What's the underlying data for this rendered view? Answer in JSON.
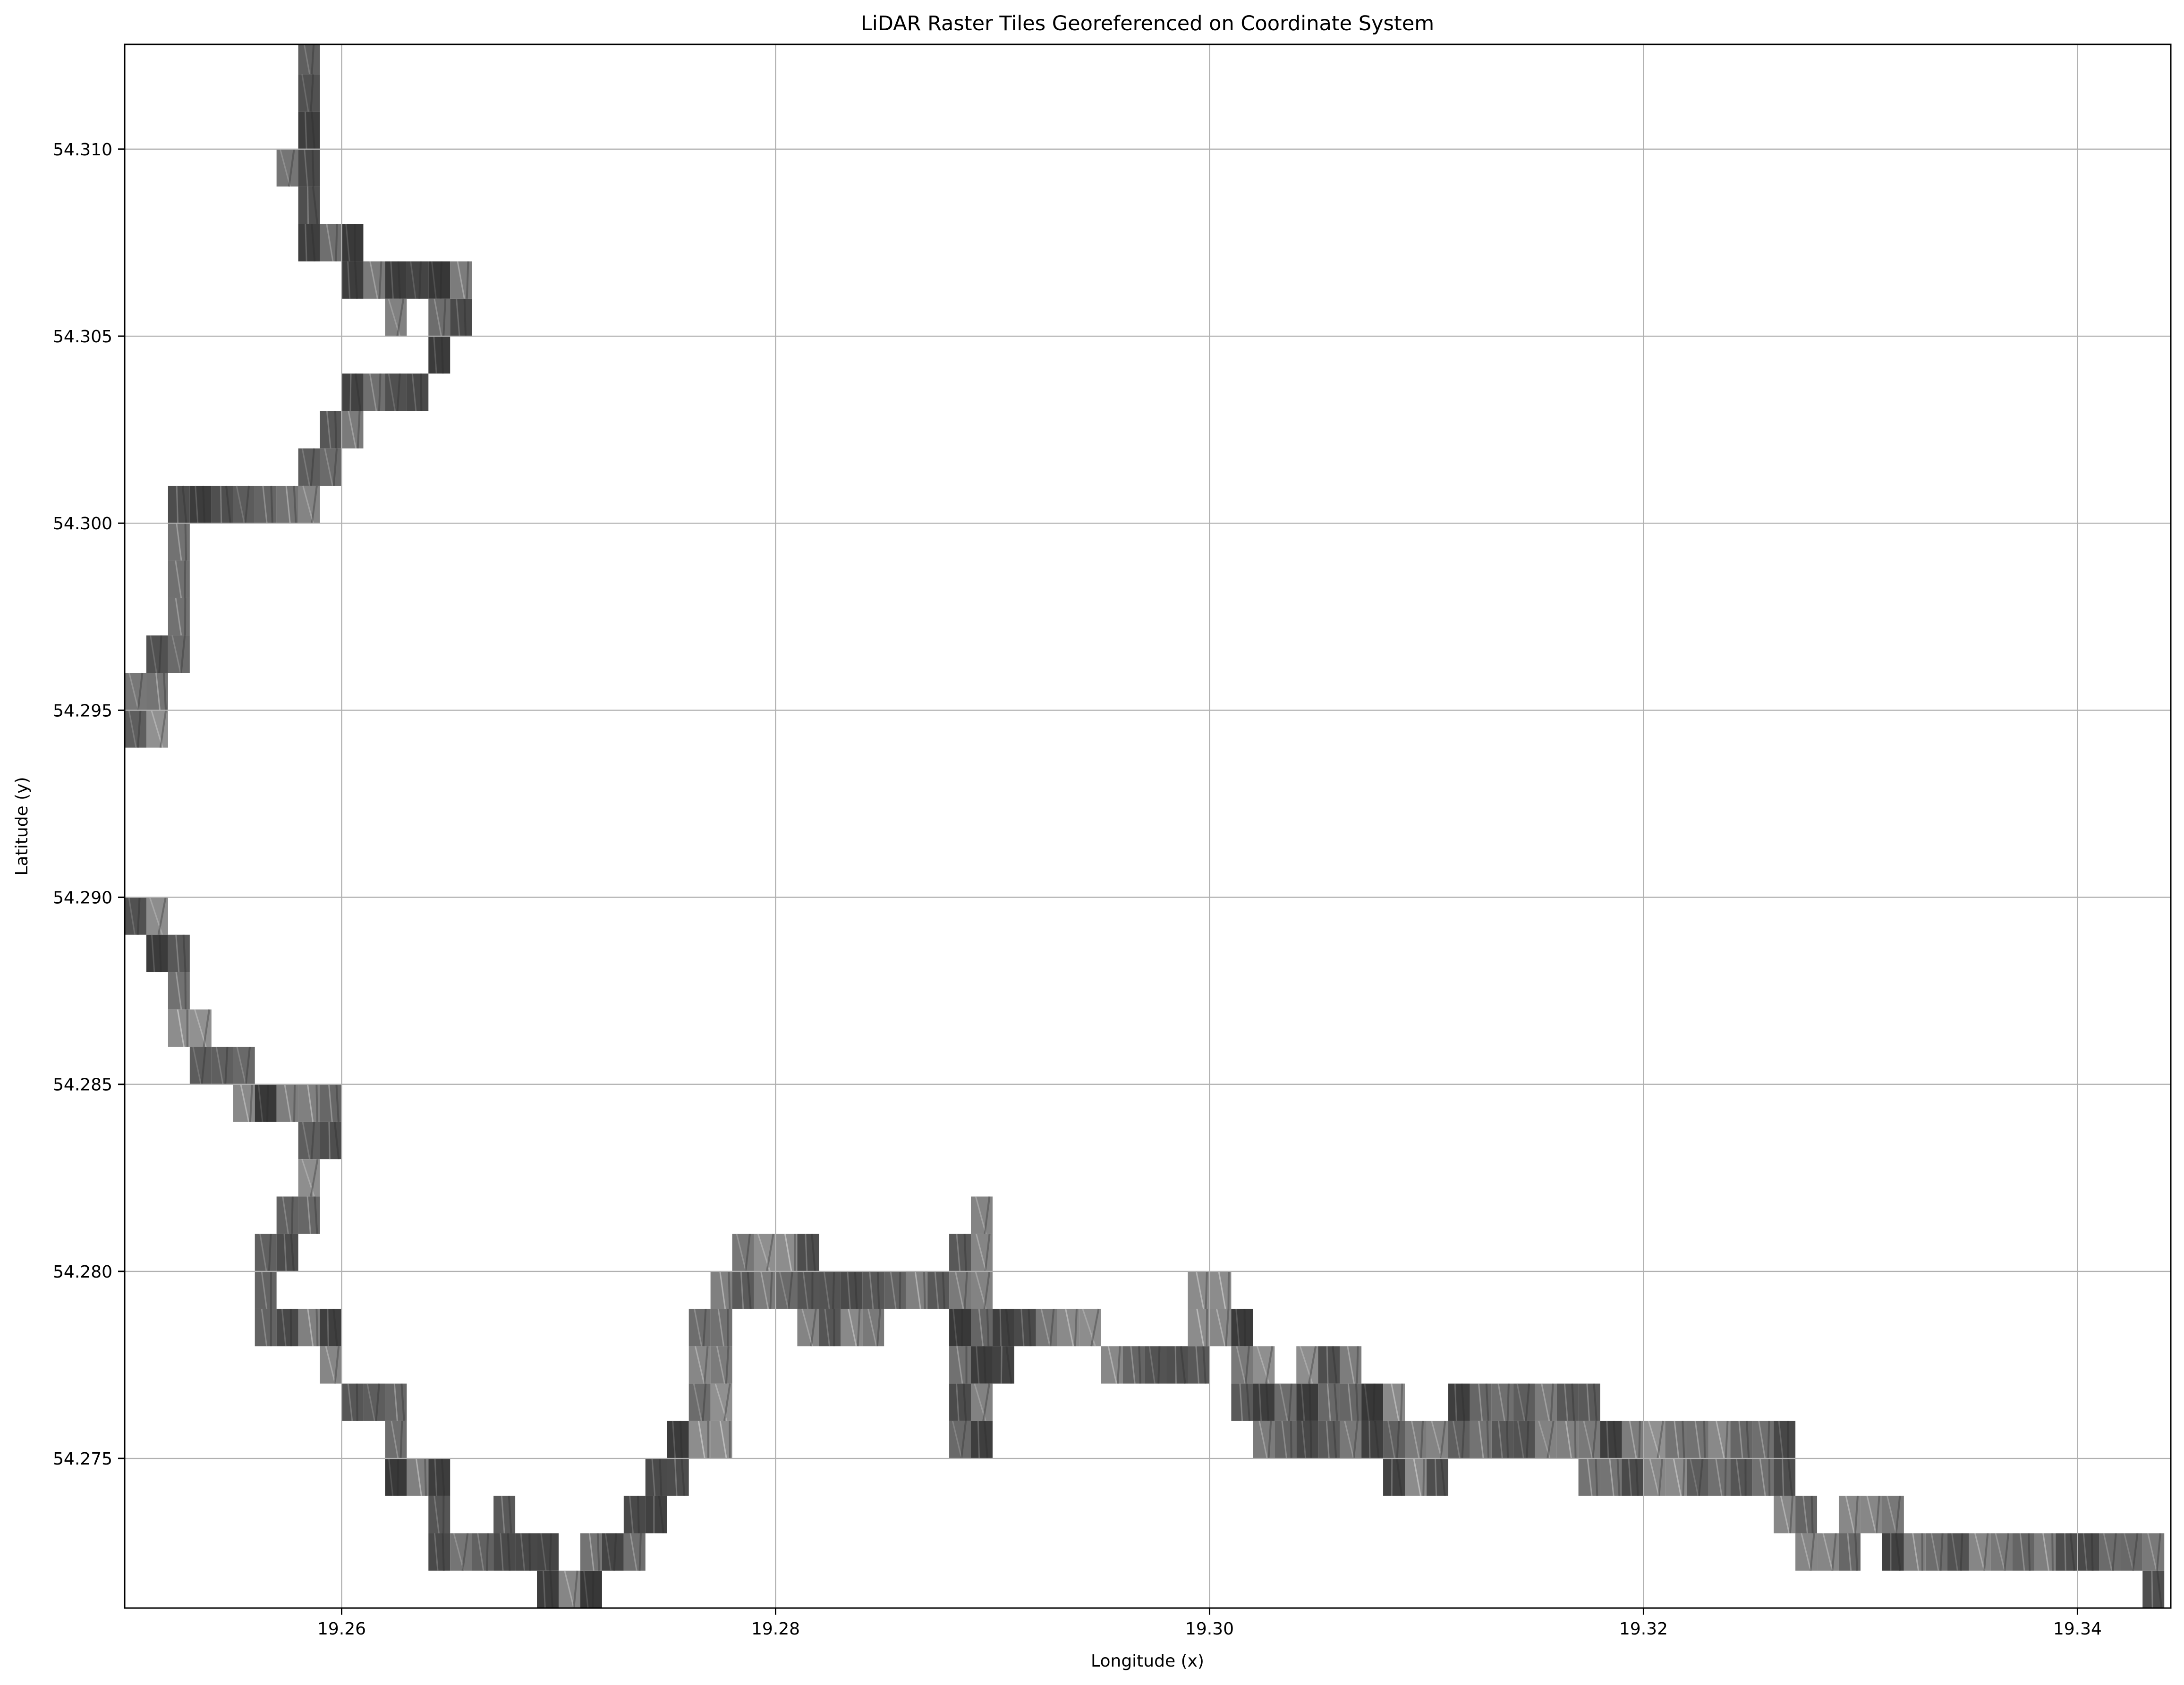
{
  "chart_data": {
    "type": "heatmap",
    "title": "LiDAR Raster Tiles Georeferenced on Coordinate System",
    "xlabel": "Longitude (x)",
    "ylabel": "Latitude (y)",
    "xlim": [
      19.25,
      19.3443
    ],
    "ylim": [
      54.271,
      54.3128
    ],
    "xticks": [
      19.26,
      19.28,
      19.3,
      19.32,
      19.34
    ],
    "xtick_labels": [
      "19.26",
      "19.28",
      "19.30",
      "19.32",
      "19.34"
    ],
    "yticks": [
      54.275,
      54.28,
      54.285,
      54.29,
      54.295,
      54.3,
      54.305,
      54.31
    ],
    "ytick_labels": [
      "54.275",
      "54.280",
      "54.285",
      "54.290",
      "54.295",
      "54.300",
      "54.305",
      "54.310"
    ],
    "grid": true,
    "tile_size_deg": [
      0.001,
      0.001
    ],
    "tile_colormap": "grayscale",
    "tiles": [
      [
        19.258,
        54.312
      ],
      [
        19.258,
        54.311
      ],
      [
        19.258,
        54.31
      ],
      [
        19.257,
        54.309
      ],
      [
        19.258,
        54.309
      ],
      [
        19.258,
        54.308
      ],
      [
        19.258,
        54.307
      ],
      [
        19.259,
        54.307
      ],
      [
        19.26,
        54.307
      ],
      [
        19.26,
        54.306
      ],
      [
        19.261,
        54.306
      ],
      [
        19.262,
        54.306
      ],
      [
        19.263,
        54.306
      ],
      [
        19.264,
        54.306
      ],
      [
        19.265,
        54.306
      ],
      [
        19.262,
        54.305
      ],
      [
        19.264,
        54.305
      ],
      [
        19.265,
        54.305
      ],
      [
        19.264,
        54.304
      ],
      [
        19.26,
        54.303
      ],
      [
        19.261,
        54.303
      ],
      [
        19.262,
        54.303
      ],
      [
        19.263,
        54.303
      ],
      [
        19.259,
        54.302
      ],
      [
        19.26,
        54.302
      ],
      [
        19.258,
        54.301
      ],
      [
        19.259,
        54.301
      ],
      [
        19.252,
        54.3
      ],
      [
        19.253,
        54.3
      ],
      [
        19.254,
        54.3
      ],
      [
        19.255,
        54.3
      ],
      [
        19.256,
        54.3
      ],
      [
        19.257,
        54.3
      ],
      [
        19.258,
        54.3
      ],
      [
        19.252,
        54.299
      ],
      [
        19.252,
        54.298
      ],
      [
        19.252,
        54.297
      ],
      [
        19.251,
        54.296
      ],
      [
        19.252,
        54.296
      ],
      [
        19.25,
        54.295
      ],
      [
        19.251,
        54.295
      ],
      [
        19.25,
        54.294
      ],
      [
        19.251,
        54.294
      ],
      [
        19.25,
        54.289
      ],
      [
        19.251,
        54.289
      ],
      [
        19.251,
        54.288
      ],
      [
        19.252,
        54.288
      ],
      [
        19.252,
        54.287
      ],
      [
        19.252,
        54.286
      ],
      [
        19.253,
        54.286
      ],
      [
        19.253,
        54.285
      ],
      [
        19.254,
        54.285
      ],
      [
        19.255,
        54.285
      ],
      [
        19.255,
        54.284
      ],
      [
        19.256,
        54.284
      ],
      [
        19.257,
        54.284
      ],
      [
        19.258,
        54.284
      ],
      [
        19.259,
        54.284
      ],
      [
        19.258,
        54.283
      ],
      [
        19.259,
        54.283
      ],
      [
        19.258,
        54.282
      ],
      [
        19.257,
        54.281
      ],
      [
        19.258,
        54.281
      ],
      [
        19.256,
        54.28
      ],
      [
        19.257,
        54.28
      ],
      [
        19.256,
        54.279
      ],
      [
        19.256,
        54.278
      ],
      [
        19.257,
        54.278
      ],
      [
        19.258,
        54.278
      ],
      [
        19.259,
        54.278
      ],
      [
        19.259,
        54.277
      ],
      [
        19.26,
        54.276
      ],
      [
        19.261,
        54.276
      ],
      [
        19.262,
        54.276
      ],
      [
        19.262,
        54.275
      ],
      [
        19.262,
        54.274
      ],
      [
        19.263,
        54.274
      ],
      [
        19.264,
        54.274
      ],
      [
        19.264,
        54.273
      ],
      [
        19.267,
        54.273
      ],
      [
        19.264,
        54.272
      ],
      [
        19.265,
        54.272
      ],
      [
        19.266,
        54.272
      ],
      [
        19.267,
        54.272
      ],
      [
        19.268,
        54.272
      ],
      [
        19.269,
        54.272
      ],
      [
        19.269,
        54.271
      ],
      [
        19.27,
        54.271
      ],
      [
        19.271,
        54.271
      ],
      [
        19.271,
        54.272
      ],
      [
        19.272,
        54.272
      ],
      [
        19.273,
        54.272
      ],
      [
        19.273,
        54.273
      ],
      [
        19.274,
        54.273
      ],
      [
        19.274,
        54.274
      ],
      [
        19.275,
        54.274
      ],
      [
        19.275,
        54.275
      ],
      [
        19.276,
        54.275
      ],
      [
        19.277,
        54.275
      ],
      [
        19.276,
        54.276
      ],
      [
        19.277,
        54.276
      ],
      [
        19.276,
        54.277
      ],
      [
        19.277,
        54.277
      ],
      [
        19.276,
        54.278
      ],
      [
        19.277,
        54.278
      ],
      [
        19.277,
        54.279
      ],
      [
        19.278,
        54.279
      ],
      [
        19.279,
        54.279
      ],
      [
        19.278,
        54.28
      ],
      [
        19.279,
        54.28
      ],
      [
        19.28,
        54.28
      ],
      [
        19.281,
        54.28
      ],
      [
        19.28,
        54.279
      ],
      [
        19.281,
        54.279
      ],
      [
        19.282,
        54.279
      ],
      [
        19.281,
        54.278
      ],
      [
        19.282,
        54.278
      ],
      [
        19.283,
        54.278
      ],
      [
        19.284,
        54.278
      ],
      [
        19.283,
        54.279
      ],
      [
        19.284,
        54.279
      ],
      [
        19.285,
        54.279
      ],
      [
        19.286,
        54.279
      ],
      [
        19.287,
        54.279
      ],
      [
        19.288,
        54.279
      ],
      [
        19.289,
        54.279
      ],
      [
        19.288,
        54.28
      ],
      [
        19.289,
        54.28
      ],
      [
        19.289,
        54.281
      ],
      [
        19.288,
        54.278
      ],
      [
        19.289,
        54.278
      ],
      [
        19.29,
        54.278
      ],
      [
        19.291,
        54.278
      ],
      [
        19.292,
        54.278
      ],
      [
        19.293,
        54.278
      ],
      [
        19.294,
        54.278
      ],
      [
        19.288,
        54.277
      ],
      [
        19.289,
        54.277
      ],
      [
        19.29,
        54.277
      ],
      [
        19.288,
        54.276
      ],
      [
        19.289,
        54.276
      ],
      [
        19.288,
        54.275
      ],
      [
        19.289,
        54.275
      ],
      [
        19.295,
        54.277
      ],
      [
        19.296,
        54.277
      ],
      [
        19.297,
        54.277
      ],
      [
        19.298,
        54.277
      ],
      [
        19.299,
        54.277
      ],
      [
        19.299,
        54.278
      ],
      [
        19.3,
        54.278
      ],
      [
        19.299,
        54.279
      ],
      [
        19.3,
        54.279
      ],
      [
        19.301,
        54.278
      ],
      [
        19.301,
        54.277
      ],
      [
        19.302,
        54.277
      ],
      [
        19.301,
        54.276
      ],
      [
        19.302,
        54.276
      ],
      [
        19.303,
        54.276
      ],
      [
        19.304,
        54.276
      ],
      [
        19.302,
        54.275
      ],
      [
        19.303,
        54.275
      ],
      [
        19.304,
        54.275
      ],
      [
        19.304,
        54.277
      ],
      [
        19.305,
        54.277
      ],
      [
        19.306,
        54.277
      ],
      [
        19.305,
        54.276
      ],
      [
        19.306,
        54.276
      ],
      [
        19.307,
        54.276
      ],
      [
        19.308,
        54.276
      ],
      [
        19.305,
        54.275
      ],
      [
        19.306,
        54.275
      ],
      [
        19.307,
        54.275
      ],
      [
        19.308,
        54.275
      ],
      [
        19.309,
        54.275
      ],
      [
        19.31,
        54.275
      ],
      [
        19.308,
        54.274
      ],
      [
        19.309,
        54.274
      ],
      [
        19.31,
        54.274
      ],
      [
        19.311,
        54.275
      ],
      [
        19.311,
        54.276
      ],
      [
        19.312,
        54.276
      ],
      [
        19.313,
        54.276
      ],
      [
        19.314,
        54.276
      ],
      [
        19.315,
        54.276
      ],
      [
        19.316,
        54.276
      ],
      [
        19.317,
        54.276
      ],
      [
        19.312,
        54.275
      ],
      [
        19.313,
        54.275
      ],
      [
        19.314,
        54.275
      ],
      [
        19.315,
        54.275
      ],
      [
        19.316,
        54.275
      ],
      [
        19.317,
        54.275
      ],
      [
        19.317,
        54.274
      ],
      [
        19.318,
        54.274
      ],
      [
        19.319,
        54.274
      ],
      [
        19.32,
        54.274
      ],
      [
        19.321,
        54.274
      ],
      [
        19.322,
        54.274
      ],
      [
        19.323,
        54.274
      ],
      [
        19.324,
        54.274
      ],
      [
        19.325,
        54.274
      ],
      [
        19.326,
        54.274
      ],
      [
        19.318,
        54.275
      ],
      [
        19.319,
        54.275
      ],
      [
        19.32,
        54.275
      ],
      [
        19.321,
        54.275
      ],
      [
        19.322,
        54.275
      ],
      [
        19.323,
        54.275
      ],
      [
        19.324,
        54.275
      ],
      [
        19.325,
        54.275
      ],
      [
        19.326,
        54.275
      ],
      [
        19.326,
        54.273
      ],
      [
        19.327,
        54.273
      ],
      [
        19.329,
        54.273
      ],
      [
        19.33,
        54.273
      ],
      [
        19.331,
        54.273
      ],
      [
        19.327,
        54.272
      ],
      [
        19.328,
        54.272
      ],
      [
        19.329,
        54.272
      ],
      [
        19.331,
        54.272
      ],
      [
        19.332,
        54.272
      ],
      [
        19.333,
        54.272
      ],
      [
        19.334,
        54.272
      ],
      [
        19.335,
        54.272
      ],
      [
        19.336,
        54.272
      ],
      [
        19.337,
        54.272
      ],
      [
        19.338,
        54.272
      ],
      [
        19.339,
        54.272
      ],
      [
        19.34,
        54.272
      ],
      [
        19.341,
        54.272
      ],
      [
        19.342,
        54.272
      ],
      [
        19.343,
        54.272
      ],
      [
        19.343,
        54.271
      ]
    ]
  }
}
